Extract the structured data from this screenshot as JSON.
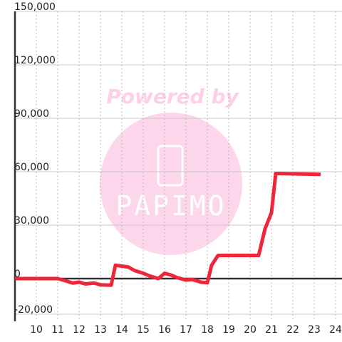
{
  "chart_data": {
    "type": "line",
    "x": [
      9,
      11,
      11.3,
      11.7,
      12,
      12.3,
      12.7,
      13,
      13.5,
      13.7,
      14,
      14.3,
      14.6,
      15,
      15.3,
      15.7,
      16,
      16.3,
      16.6,
      17,
      17.3,
      17.7,
      18,
      18.2,
      18.5,
      20.4,
      20.7,
      21,
      21.2,
      23.3
    ],
    "series": [
      {
        "color": "#ee2639",
        "values": [
          0,
          0,
          -1000,
          -2500,
          -2000,
          -3000,
          -2500,
          -3500,
          -3700,
          7500,
          7000,
          6500,
          4500,
          3000,
          1500,
          0,
          3000,
          2000,
          500,
          -800,
          -500,
          -2000,
          -2300,
          7500,
          13000,
          13000,
          28000,
          37000,
          59000,
          58500
        ]
      }
    ],
    "xlim": [
      9,
      24.3
    ],
    "ylim": [
      -24000,
      150000
    ],
    "xticks": [
      10,
      11,
      12,
      13,
      14,
      15,
      16,
      17,
      18,
      19,
      20,
      21,
      22,
      23,
      24
    ],
    "yticks": [
      {
        "value": -20000,
        "label": "-20,000"
      },
      0,
      {
        "value": 30000,
        "label": "30,000"
      },
      {
        "value": 60000,
        "label": "60,000"
      },
      {
        "value": 90000,
        "label": "90,000"
      },
      {
        "value": 120000,
        "label": "120,000"
      },
      {
        "value": 150000,
        "label": "150,000"
      }
    ],
    "grid": true,
    "annotations": [
      "Powered by",
      "PAPIMO"
    ]
  }
}
